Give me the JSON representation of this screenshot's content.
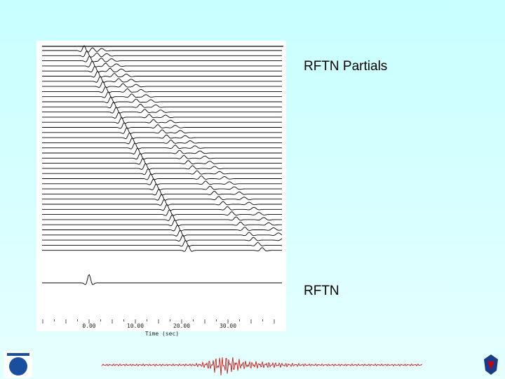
{
  "slide": {
    "label_partials": "RFTN Partials",
    "label_rftn": "RFTN"
  },
  "plot": {
    "x_axis": {
      "ticks": [
        "0.00",
        "10.00",
        "20.00",
        "30.00"
      ],
      "title": "Time (sec)"
    }
  }
}
